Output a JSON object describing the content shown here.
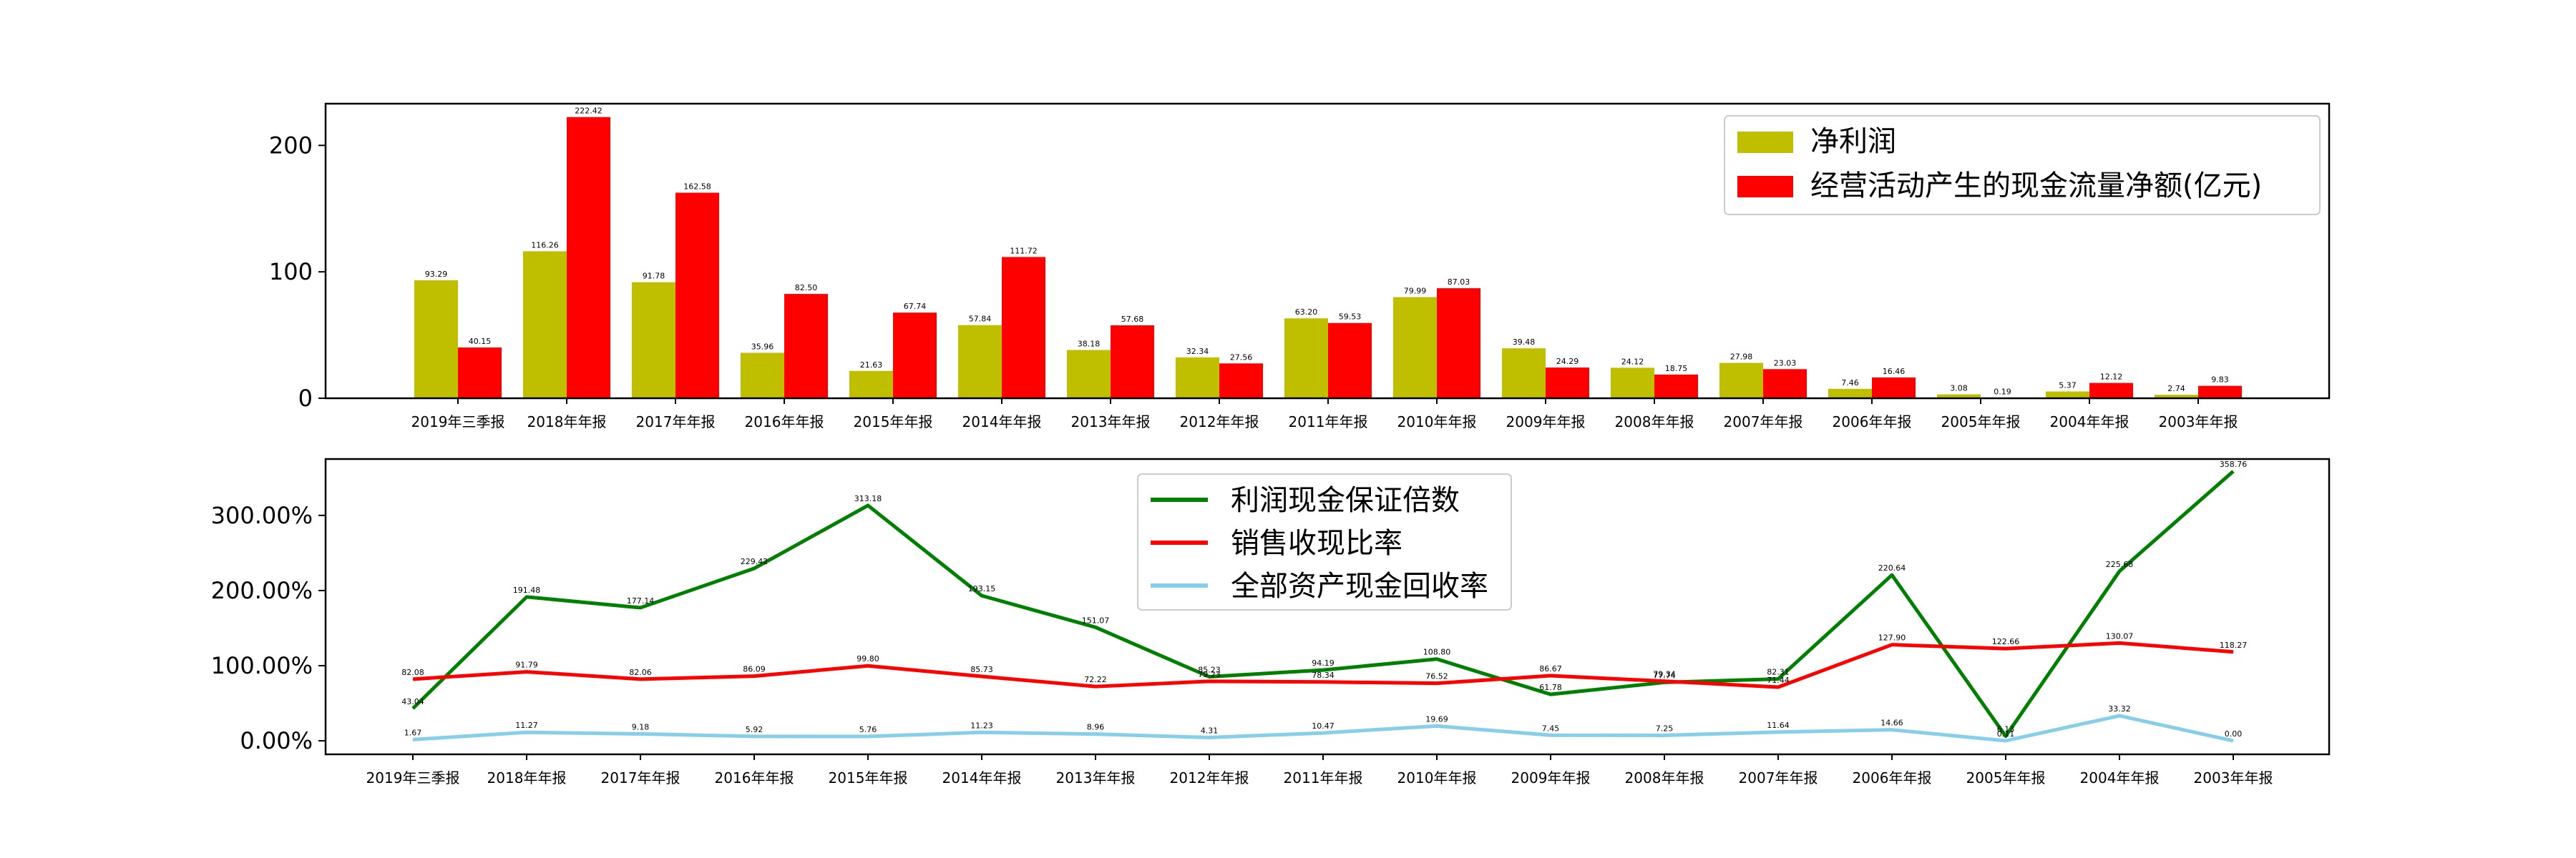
{
  "chart_data": [
    {
      "type": "bar",
      "categories": [
        "2019年三季报",
        "2018年年报",
        "2017年年报",
        "2016年年报",
        "2015年年报",
        "2014年年报",
        "2013年年报",
        "2012年年报",
        "2011年年报",
        "2010年年报",
        "2009年年报",
        "2008年年报",
        "2007年年报",
        "2006年年报",
        "2005年年报",
        "2004年年报",
        "2003年年报"
      ],
      "series": [
        {
          "name": "净利润",
          "color": "#bfbf00",
          "values": [
            93.29,
            116.26,
            91.78,
            35.96,
            21.63,
            57.84,
            38.18,
            32.34,
            63.2,
            79.99,
            39.48,
            24.12,
            27.98,
            7.46,
            3.08,
            5.37,
            2.74
          ]
        },
        {
          "name": "经营活动产生的现金流量净额(亿元)",
          "color": "#ff0000",
          "values": [
            40.15,
            222.42,
            162.58,
            82.5,
            67.74,
            111.72,
            57.68,
            27.56,
            59.53,
            87.03,
            24.29,
            18.75,
            23.03,
            16.46,
            0.19,
            12.12,
            9.83
          ]
        }
      ],
      "value_labels": [
        [
          "93.29",
          "116.26",
          "91.78",
          "35.96",
          "21.63",
          "57.84",
          "38.18",
          "32.34",
          "63.20",
          "79.99",
          "39.48",
          "24.12",
          "27.98",
          "7.46",
          "3.08",
          "5.37",
          "2.74"
        ],
        [
          "40.15",
          "222.42",
          "162.58",
          "82.50",
          "67.74",
          "111.72",
          "57.68",
          "27.56",
          "59.53",
          "87.03",
          "24.29",
          "18.75",
          "23.03",
          "16.46",
          "0.19",
          "12.12",
          "9.83"
        ]
      ],
      "ylim": [
        0,
        233
      ],
      "yticks": [
        0,
        100,
        200
      ],
      "ytick_labels": [
        "0",
        "100",
        "200"
      ],
      "legend_position": "upper-right",
      "grid": false
    },
    {
      "type": "line",
      "categories": [
        "2019年三季报",
        "2018年年报",
        "2017年年报",
        "2016年年报",
        "2015年年报",
        "2014年年报",
        "2013年年报",
        "2012年年报",
        "2011年年报",
        "2010年年报",
        "2009年年报",
        "2008年年报",
        "2007年年报",
        "2006年年报",
        "2005年年报",
        "2004年年报",
        "2003年年报"
      ],
      "series": [
        {
          "name": "利润现金保证倍数",
          "color": "#008000",
          "values": [
            43.04,
            191.48,
            177.14,
            229.42,
            313.18,
            193.15,
            151.07,
            85.23,
            94.19,
            108.8,
            61.78,
            77.74,
            82.31,
            220.64,
            6.13,
            225.68,
            358.76
          ]
        },
        {
          "name": "销售收现比率",
          "color": "#ff0000",
          "values": [
            82.08,
            91.79,
            82.06,
            86.09,
            99.8,
            85.73,
            72.22,
            79.23,
            78.34,
            76.52,
            86.67,
            79.34,
            71.44,
            127.9,
            122.66,
            130.07,
            118.27
          ]
        },
        {
          "name": "全部资产现金回收率",
          "color": "#87ceeb",
          "values": [
            1.67,
            11.27,
            9.18,
            5.92,
            5.76,
            11.23,
            8.96,
            4.31,
            10.47,
            19.69,
            7.45,
            7.25,
            11.64,
            14.66,
            0.11,
            33.32,
            0.0
          ]
        }
      ],
      "value_labels": [
        [
          "43.04",
          "191.48",
          "177.14",
          "229.42",
          "313.18",
          "193.15",
          "151.07",
          "85.23",
          "94.19",
          "108.80",
          "61.78",
          "77.74",
          "82.31",
          "220.64",
          "6.13",
          "225.68",
          "358.76"
        ],
        [
          "82.08",
          "91.79",
          "82.06",
          "86.09",
          "99.80",
          "85.73",
          "72.22",
          "79.23",
          "78.34",
          "76.52",
          "86.67",
          "79.34",
          "71.44",
          "127.90",
          "122.66",
          "130.07",
          "118.27"
        ],
        [
          "1.67",
          "11.27",
          "9.18",
          "5.92",
          "5.76",
          "11.23",
          "8.96",
          "4.31",
          "10.47",
          "19.69",
          "7.45",
          "7.25",
          "11.64",
          "14.66",
          "0.11",
          "33.32",
          "0.00"
        ]
      ],
      "ylim": [
        -18,
        375
      ],
      "yticks": [
        0,
        100,
        200,
        300
      ],
      "ytick_labels": [
        "0.00%",
        "100.00%",
        "200.00%",
        "300.00%"
      ],
      "legend_position": "upper-center",
      "grid": false
    }
  ]
}
